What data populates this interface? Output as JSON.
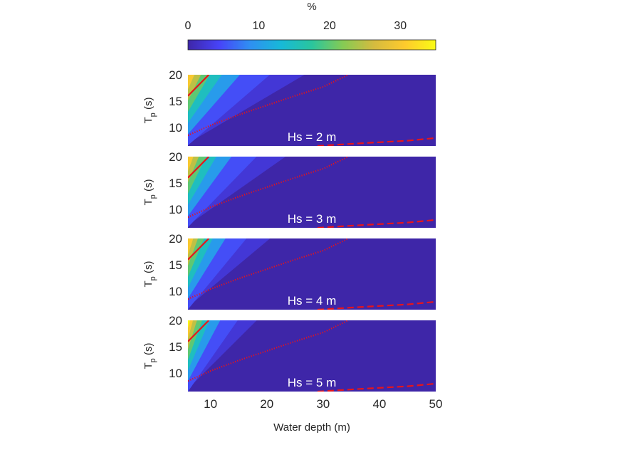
{
  "chart_data": {
    "type": "heatmap",
    "colorbar": {
      "label": "%",
      "ticks": [
        0,
        10,
        20,
        30
      ],
      "range": [
        0,
        35
      ],
      "colormap": [
        "#3e26a8",
        "#4743f8",
        "#2f8ff2",
        "#17b9d8",
        "#2ac59d",
        "#85cb54",
        "#d5bb3f",
        "#feca2d",
        "#f9fb15"
      ]
    },
    "x": {
      "label": "Water depth (m)",
      "range": [
        6,
        50
      ],
      "ticks": [
        10,
        20,
        30,
        40,
        50
      ]
    },
    "y": {
      "label_main": "T",
      "label_sub": "p",
      "label_unit": " (s)",
      "range": [
        6.5,
        20
      ],
      "ticks": [
        10,
        15,
        20
      ]
    },
    "panels": [
      {
        "label": "Hs = 2 m",
        "hs": 2,
        "max_value": 33,
        "zero_slope": 0.62
      },
      {
        "label": "Hs = 3 m",
        "hs": 3,
        "max_value": 33,
        "zero_slope": 0.74
      },
      {
        "label": "Hs = 4 m",
        "hs": 4,
        "max_value": 34,
        "zero_slope": 0.88
      },
      {
        "label": "Hs = 5 m",
        "hs": 5,
        "max_value": 35,
        "zero_slope": 1.05
      }
    ],
    "lines": [
      {
        "style": "solid",
        "color": "#e8141a",
        "points": [
          [
            6,
            16
          ],
          [
            9.7,
            20
          ]
        ]
      },
      {
        "style": "dotted",
        "color": "#e8141a",
        "points": [
          [
            6,
            8.5
          ],
          [
            10,
            10.4
          ],
          [
            15,
            12.4
          ],
          [
            20,
            14.2
          ],
          [
            25,
            16
          ],
          [
            30,
            17.7
          ],
          [
            34.5,
            20
          ]
        ]
      },
      {
        "style": "dashed",
        "color": "#e8141a",
        "points": [
          [
            29,
            6.5
          ],
          [
            35,
            6.9
          ],
          [
            40,
            7.2
          ],
          [
            45,
            7.5
          ],
          [
            50,
            8
          ]
        ]
      }
    ]
  }
}
